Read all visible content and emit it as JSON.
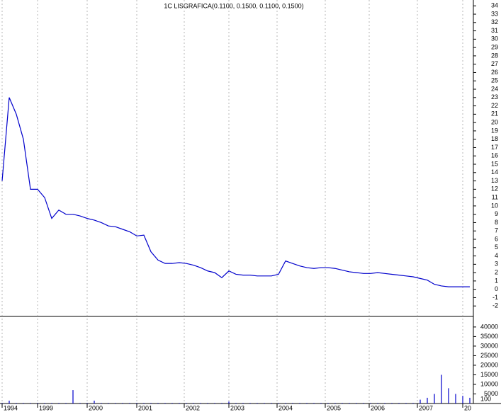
{
  "chart_data": [
    {
      "type": "line",
      "title": "1C LISGRAFICA(0.1100, 0.1500, 0.1100, 0.1500)",
      "xlim": [
        0,
        66
      ],
      "xticks": [
        {
          "value": 0,
          "label": "1994"
        },
        {
          "value": 5,
          "label": "1999"
        },
        {
          "value": 12,
          "label": "2000"
        },
        {
          "value": 19,
          "label": "2001"
        },
        {
          "value": 25.7,
          "label": "2002"
        },
        {
          "value": 32,
          "label": "2003"
        },
        {
          "value": 38.8,
          "label": "2004"
        },
        {
          "value": 45.6,
          "label": "2005"
        },
        {
          "value": 51.8,
          "label": "2006"
        },
        {
          "value": 58.6,
          "label": "2007"
        },
        {
          "value": 65,
          "label": "20"
        }
      ],
      "ylim": [
        -3,
        34.7
      ],
      "yticks": [
        -2,
        -1,
        0,
        1,
        2,
        3,
        4,
        5,
        6,
        7,
        8,
        9,
        10,
        11,
        12,
        13,
        14,
        15,
        16,
        17,
        18,
        19,
        20,
        21,
        22,
        23,
        24,
        25,
        26,
        27,
        28,
        29,
        30,
        31,
        32,
        33,
        34
      ],
      "grid": true,
      "series": [
        {
          "color": "#0000cc",
          "values": [
            13,
            23,
            21,
            18,
            12,
            12,
            11,
            8.5,
            9.5,
            9,
            9,
            8.8,
            8.5,
            8.3,
            8,
            7.6,
            7.5,
            7.2,
            6.9,
            6.4,
            6.5,
            4.5,
            3.5,
            3.1,
            3.1,
            3.2,
            3.1,
            2.9,
            2.6,
            2.2,
            2.0,
            1.4,
            2.2,
            1.8,
            1.7,
            1.7,
            1.6,
            1.6,
            1.6,
            1.8,
            3.4,
            3.1,
            2.8,
            2.6,
            2.5,
            2.6,
            2.6,
            2.5,
            2.3,
            2.1,
            2.0,
            1.9,
            1.9,
            2.0,
            1.9,
            1.8,
            1.7,
            1.6,
            1.5,
            1.3,
            1.1,
            0.6,
            0.4,
            0.3,
            0.3,
            0.3,
            0.3
          ]
        }
      ]
    },
    {
      "type": "bar",
      "unit_label": "100",
      "color": "#0000cc",
      "xlim": [
        0,
        66
      ],
      "ylim": [
        0,
        44400
      ],
      "yticks": [
        5000,
        10000,
        15000,
        20000,
        25000,
        30000,
        35000,
        40000
      ],
      "values": [
        300,
        1500,
        300,
        300,
        300,
        300,
        300,
        300,
        300,
        300,
        7000,
        300,
        300,
        1500,
        300,
        300,
        300,
        300,
        300,
        300,
        300,
        300,
        300,
        300,
        300,
        300,
        300,
        300,
        300,
        300,
        300,
        300,
        1000,
        300,
        300,
        300,
        300,
        300,
        300,
        300,
        300,
        300,
        300,
        300,
        300,
        300,
        300,
        300,
        300,
        300,
        300,
        300,
        300,
        300,
        300,
        300,
        300,
        300,
        300,
        2000,
        3000,
        5000,
        15000,
        8000,
        5000,
        4000,
        3000
      ]
    }
  ]
}
